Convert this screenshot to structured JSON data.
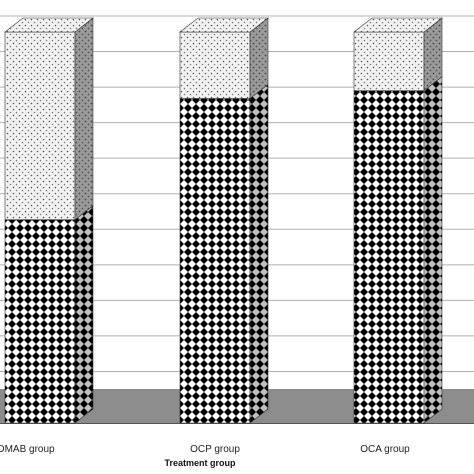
{
  "chart_data": {
    "type": "bar",
    "stacked": true,
    "style": "3d",
    "xlabel": "Treatment group",
    "ylabel": "",
    "categories": [
      "DMAB group",
      "OCP group",
      "OCA group"
    ],
    "ylim": [
      0,
      100
    ],
    "grid": true,
    "legend": "none",
    "series": [
      {
        "pattern": "checker",
        "values": [
          52,
          83,
          85
        ]
      },
      {
        "pattern": "dotted",
        "values": [
          48,
          17,
          15
        ]
      }
    ]
  },
  "colors": {
    "floor": "#8c8c8c",
    "gridline": "#b0b0b0",
    "checker_dark": "#000000",
    "checker_light": "#ffffff",
    "dotted_bg": "#f0f0f0",
    "dotted_dot": "#555555"
  }
}
